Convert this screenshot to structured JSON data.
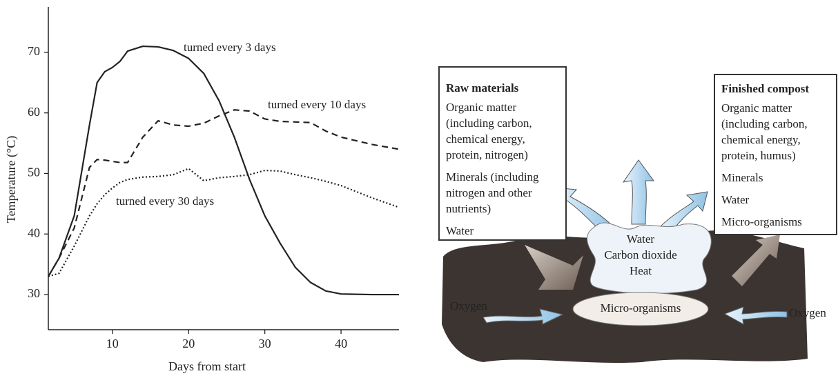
{
  "chart_data": {
    "type": "line",
    "xlabel": "Days from start",
    "ylabel": "Temperature (°C)",
    "x": [
      1.6,
      3,
      5,
      7,
      8,
      9,
      10,
      11,
      12,
      14,
      16,
      18,
      20,
      22,
      24,
      26,
      28,
      30,
      32,
      34,
      36,
      38,
      40,
      44,
      47.6
    ],
    "series": [
      {
        "name": "turned every 3 days",
        "color": "#222222",
        "dash": "solid",
        "values": [
          33,
          36,
          43,
          58,
          65,
          66.8,
          67.5,
          68.5,
          70.2,
          71,
          70.9,
          70.3,
          69,
          66.5,
          62,
          56,
          49,
          43,
          38.5,
          34.5,
          32,
          30.6,
          30.1,
          30,
          30
        ]
      },
      {
        "name": "turned every 10 days",
        "color": "#222222",
        "dash": "dashed",
        "values": [
          33,
          36,
          41,
          51,
          52.3,
          52.2,
          52,
          51.8,
          51.8,
          56,
          58.7,
          58,
          57.8,
          58.3,
          59.5,
          60.5,
          60.3,
          59,
          58.6,
          58.5,
          58.4,
          57,
          56,
          54.8,
          54
        ]
      },
      {
        "name": "turned every 30 days",
        "color": "#222222",
        "dash": "dotted",
        "values": [
          33,
          33.5,
          38,
          43,
          45,
          46.5,
          47.6,
          48.5,
          49,
          49.4,
          49.5,
          49.8,
          50.8,
          48.8,
          49.3,
          49.5,
          49.8,
          50.5,
          50.4,
          49.8,
          49.3,
          48.7,
          48,
          46,
          44.4
        ]
      }
    ],
    "xlim": [
      1.6,
      47.6
    ],
    "ylim": [
      24.2,
      77.5
    ],
    "xticks": [
      10,
      20,
      30,
      40
    ],
    "yticks": [
      30,
      40,
      50,
      60,
      70
    ]
  },
  "diagram": {
    "raw_materials": {
      "title": "Raw materials",
      "items": [
        [
          "Organic matter",
          "(including carbon,",
          "chemical energy,",
          "protein, nitrogen)"
        ],
        [
          "Minerals (including",
          "nitrogen and other",
          "nutrients)"
        ],
        [
          "Water"
        ]
      ]
    },
    "finished_compost": {
      "title": "Finished compost",
      "items": [
        [
          "Organic matter",
          "(including carbon,",
          "chemical energy,",
          "protein, humus)"
        ],
        [
          "Minerals"
        ],
        [
          "Water"
        ],
        [
          "Micro-organisms"
        ]
      ]
    },
    "products": [
      "Water",
      "Carbon dioxide",
      "Heat"
    ],
    "microbes": "Micro-organisms",
    "oxygen_left": "Oxygen",
    "oxygen_right": "Oxygen"
  }
}
